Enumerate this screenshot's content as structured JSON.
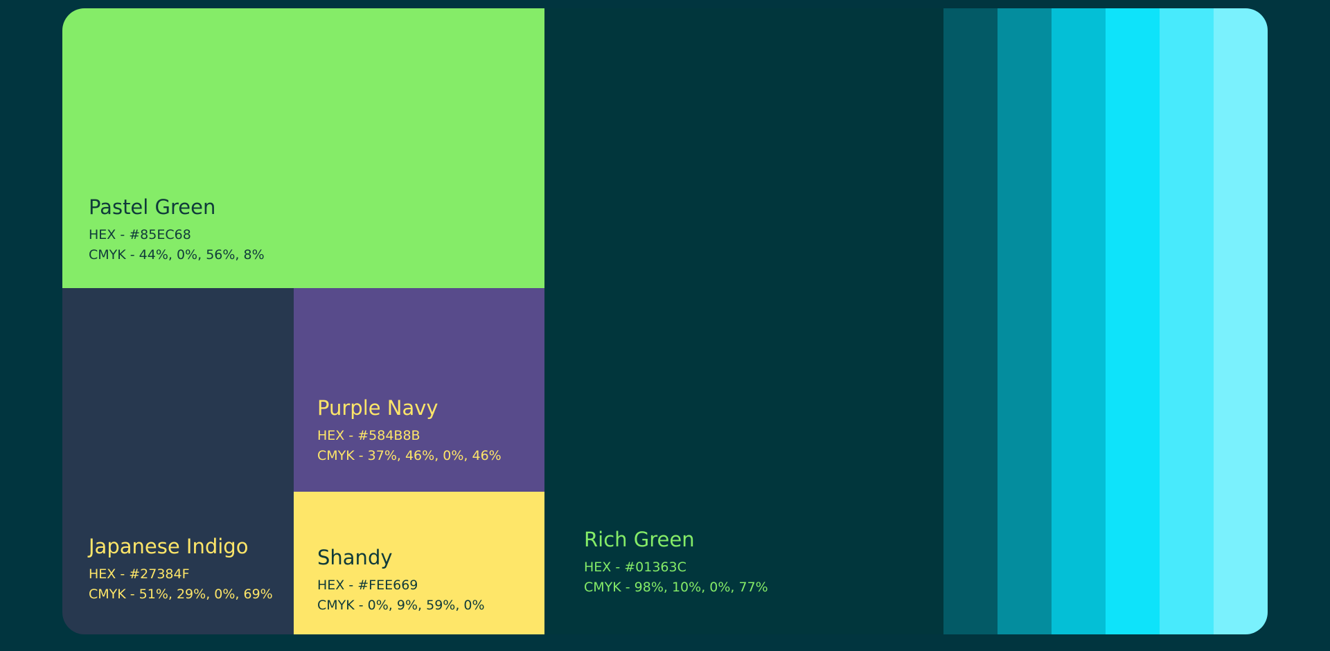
{
  "swatches": {
    "pastel_green": {
      "name": "Pastel Green",
      "hex": "HEX - #85EC68",
      "cmyk": "CMYK - 44%, 0%, 56%, 8%",
      "color": "#85EC68"
    },
    "japanese_indigo": {
      "name": "Japanese Indigo",
      "hex": "HEX - #27384F",
      "cmyk": "CMYK - 51%, 29%, 0%, 69%",
      "color": "#27384F"
    },
    "purple_navy": {
      "name": "Purple Navy",
      "hex": "HEX - #584B8B",
      "cmyk": "CMYK - 37%, 46%, 0%, 46%",
      "color": "#584B8B"
    },
    "shandy": {
      "name": "Shandy",
      "hex": "HEX - #FEE669",
      "cmyk": "CMYK - 0%, 9%, 59%, 0%",
      "color": "#FEE669"
    },
    "rich_green": {
      "name": "Rich Green",
      "hex": "HEX - #01363C",
      "cmyk": "CMYK - 98%, 10%, 0%, 77%",
      "color": "#01363C"
    }
  },
  "tints": [
    "#035a66",
    "#048d9e",
    "#04bfd6",
    "#0ee3fa",
    "#48eafc",
    "#7af1fd"
  ],
  "text_colors": {
    "dark": "#0f3a3a",
    "yellow": "#FEE669",
    "green": "#85EC68"
  }
}
